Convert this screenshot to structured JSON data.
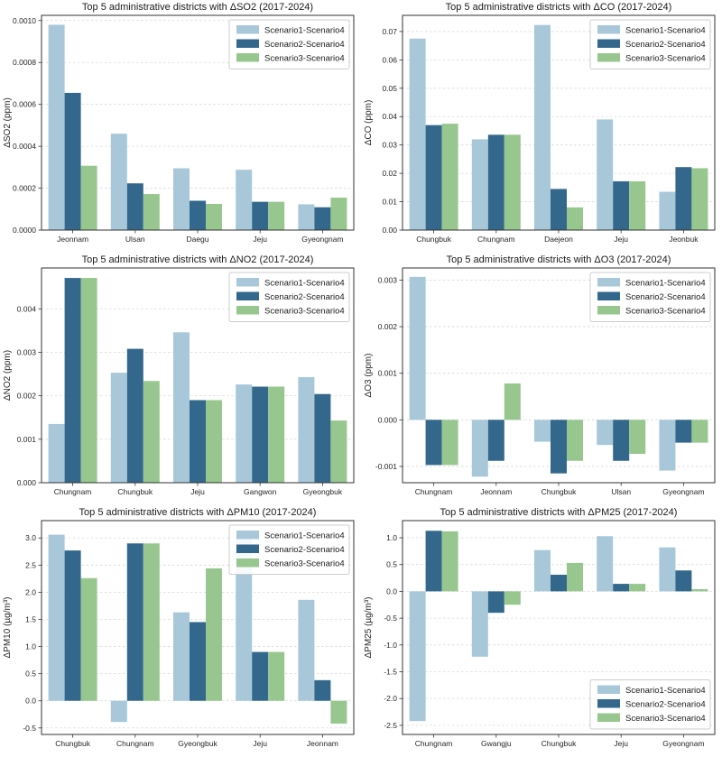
{
  "figure": {
    "background": "#ffffff",
    "series_colors": [
      "#a8c8da",
      "#33688c",
      "#97c68e"
    ],
    "legend_labels": [
      "Scenario1-Scenario4",
      "Scenario2-Scenario4",
      "Scenario3-Scenario4"
    ],
    "grid_color": "#d9d9d9",
    "spine_color": "#333333",
    "text_color": "#262626"
  },
  "chart_data": [
    {
      "type": "bar",
      "title": "Top 5 administrative districts with ΔSO2 (2017-2024)",
      "ylabel": "ΔSO2 (ppm)",
      "categories": [
        "Jeonnam",
        "Ulsan",
        "Daegu",
        "Jeju",
        "Gyeongnam"
      ],
      "series": [
        {
          "name": "Scenario1-Scenario4",
          "values": [
            0.00098,
            0.00046,
            0.000295,
            0.000288,
            0.000123
          ]
        },
        {
          "name": "Scenario2-Scenario4",
          "values": [
            0.000655,
            0.000223,
            0.00014,
            0.000135,
            0.000109
          ]
        },
        {
          "name": "Scenario3-Scenario4",
          "values": [
            0.000307,
            0.000172,
            0.000125,
            0.000135,
            0.000155
          ]
        }
      ],
      "ylim": [
        0,
        0.001025
      ],
      "yticks": [
        0.0,
        0.0002,
        0.0004,
        0.0006,
        0.0008,
        0.001
      ],
      "ytick_labels": [
        "0.0000",
        "0.0002",
        "0.0004",
        "0.0006",
        "0.0008",
        "0.0010"
      ],
      "legend_position": "upper-right",
      "grid": true
    },
    {
      "type": "bar",
      "title": "Top 5 administrative districts with ΔCO (2017-2024)",
      "ylabel": "ΔCO (ppm)",
      "categories": [
        "Chungbuk",
        "Chungnam",
        "Daejeon",
        "Jeju",
        "Jeonbuk"
      ],
      "series": [
        {
          "name": "Scenario1-Scenario4",
          "values": [
            0.0675,
            0.032,
            0.0723,
            0.039,
            0.0135
          ]
        },
        {
          "name": "Scenario2-Scenario4",
          "values": [
            0.037,
            0.0336,
            0.0145,
            0.0172,
            0.0222
          ]
        },
        {
          "name": "Scenario3-Scenario4",
          "values": [
            0.0375,
            0.0336,
            0.008,
            0.0172,
            0.0218
          ]
        }
      ],
      "ylim": [
        0,
        0.0757
      ],
      "yticks": [
        0.0,
        0.01,
        0.02,
        0.03,
        0.04,
        0.05,
        0.06,
        0.07
      ],
      "ytick_labels": [
        "0.00",
        "0.01",
        "0.02",
        "0.03",
        "0.04",
        "0.05",
        "0.06",
        "0.07"
      ],
      "legend_position": "upper-right",
      "grid": true
    },
    {
      "type": "bar",
      "title": "Top 5 administrative districts with ΔNO2 (2017-2024)",
      "ylabel": "ΔNO2 (ppm)",
      "categories": [
        "Chungnam",
        "Chungbuk",
        "Jeju",
        "Gangwon",
        "Gyeongbuk"
      ],
      "series": [
        {
          "name": "Scenario1-Scenario4",
          "values": [
            0.00135,
            0.00253,
            0.00346,
            0.00226,
            0.00243
          ]
        },
        {
          "name": "Scenario2-Scenario4",
          "values": [
            0.00471,
            0.00308,
            0.0019,
            0.00221,
            0.00204
          ]
        },
        {
          "name": "Scenario3-Scenario4",
          "values": [
            0.00471,
            0.00234,
            0.0019,
            0.00221,
            0.00143
          ]
        }
      ],
      "ylim": [
        0,
        0.00494
      ],
      "yticks": [
        0.0,
        0.001,
        0.002,
        0.003,
        0.004
      ],
      "ytick_labels": [
        "0.000",
        "0.001",
        "0.002",
        "0.003",
        "0.004"
      ],
      "legend_position": "upper-right",
      "grid": true
    },
    {
      "type": "bar",
      "title": "Top 5 administrative districts with ΔO3 (2017-2024)",
      "ylabel": "ΔO3 (ppm)",
      "categories": [
        "Chungnam",
        "Jeonnam",
        "Chungbuk",
        "Ulsan",
        "Gyeongnam"
      ],
      "series": [
        {
          "name": "Scenario1-Scenario4",
          "values": [
            0.00307,
            -0.00122,
            -0.00047,
            -0.00054,
            -0.00109
          ]
        },
        {
          "name": "Scenario2-Scenario4",
          "values": [
            -0.00097,
            -0.00088,
            -0.00115,
            -0.00088,
            -0.00049
          ]
        },
        {
          "name": "Scenario3-Scenario4",
          "values": [
            -0.00097,
            0.00078,
            -0.00088,
            -0.00073,
            -0.00049
          ]
        }
      ],
      "ylim": [
        -0.00135,
        0.00326
      ],
      "yticks": [
        -0.001,
        0.0,
        0.001,
        0.002,
        0.003
      ],
      "ytick_labels": [
        "-0.001",
        "0.000",
        "0.001",
        "0.002",
        "0.003"
      ],
      "legend_position": "upper-right",
      "grid": true
    },
    {
      "type": "bar",
      "title": "Top 5 administrative districts with ΔPM10 (2017-2024)",
      "ylabel": "ΔPM10 (µg/m³)",
      "categories": [
        "Chungbuk",
        "Chungnam",
        "Gyeongbuk",
        "Jeju",
        "Jeonnam"
      ],
      "series": [
        {
          "name": "Scenario1-Scenario4",
          "values": [
            3.06,
            -0.39,
            1.63,
            3.1,
            1.86
          ]
        },
        {
          "name": "Scenario2-Scenario4",
          "values": [
            2.77,
            2.9,
            1.45,
            0.9,
            0.38
          ]
        },
        {
          "name": "Scenario3-Scenario4",
          "values": [
            2.26,
            2.9,
            2.44,
            0.9,
            -0.42
          ]
        }
      ],
      "ylim": [
        -0.62,
        3.32
      ],
      "yticks": [
        -0.5,
        0.0,
        0.5,
        1.0,
        1.5,
        2.0,
        2.5,
        3.0
      ],
      "ytick_labels": [
        "-0.5",
        "0.0",
        "0.5",
        "1.0",
        "1.5",
        "2.0",
        "2.5",
        "3.0"
      ],
      "legend_position": "upper-right",
      "grid": true
    },
    {
      "type": "bar",
      "title": "Top 5 administrative districts with ΔPM25 (2017-2024)",
      "ylabel": "ΔPM25 (µg/m³)",
      "categories": [
        "Chungnam",
        "Gwangju",
        "Chungbuk",
        "Jeju",
        "Gyeongnam"
      ],
      "series": [
        {
          "name": "Scenario1-Scenario4",
          "values": [
            -2.42,
            -1.22,
            0.77,
            1.03,
            0.82
          ]
        },
        {
          "name": "Scenario2-Scenario4",
          "values": [
            1.13,
            -0.4,
            0.31,
            0.14,
            0.39
          ]
        },
        {
          "name": "Scenario3-Scenario4",
          "values": [
            1.12,
            -0.25,
            0.53,
            0.14,
            0.04
          ]
        }
      ],
      "ylim": [
        -2.67,
        1.32
      ],
      "yticks": [
        -2.5,
        -2.0,
        -1.5,
        -1.0,
        -0.5,
        0.0,
        0.5,
        1.0
      ],
      "ytick_labels": [
        "-2.5",
        "-2.0",
        "-1.5",
        "-1.0",
        "-0.5",
        "0.0",
        "0.5",
        "1.0"
      ],
      "legend_position": "lower-right",
      "grid": true
    }
  ]
}
